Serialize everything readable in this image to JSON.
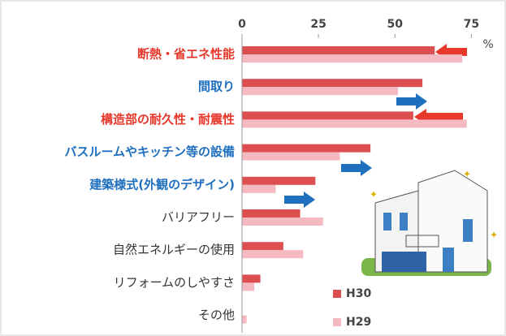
{
  "chart_data": {
    "type": "barh",
    "x_label": "%",
    "categories": [
      "断熱・省エネ性能",
      "間取り",
      "構造部の耐久性・耐震性",
      "バスルームやキッチン等の設備",
      "建築様式(外観のデザイン)",
      "バリアフリー",
      "自然エネルギーの使用",
      "リフォームのしやすさ",
      "その他"
    ],
    "category_colors": [
      "#e8382c",
      "#1f6fbf",
      "#e8382c",
      "#1f6fbf",
      "#1f6fbf",
      "#333333",
      "#333333",
      "#333333",
      "#333333"
    ],
    "series": [
      {
        "name": "H30",
        "color": "#dc4e50",
        "values": [
          63,
          59,
          56,
          42,
          24,
          19,
          13.5,
          6,
          0
        ]
      },
      {
        "name": "H29",
        "color": "#f5b9c1",
        "values": [
          72,
          51,
          73.5,
          32,
          11,
          26.5,
          20,
          4,
          1.5
        ]
      }
    ],
    "xlim": [
      0,
      85
    ],
    "xticks": [
      0,
      25,
      50,
      75
    ],
    "grid": false
  }
}
